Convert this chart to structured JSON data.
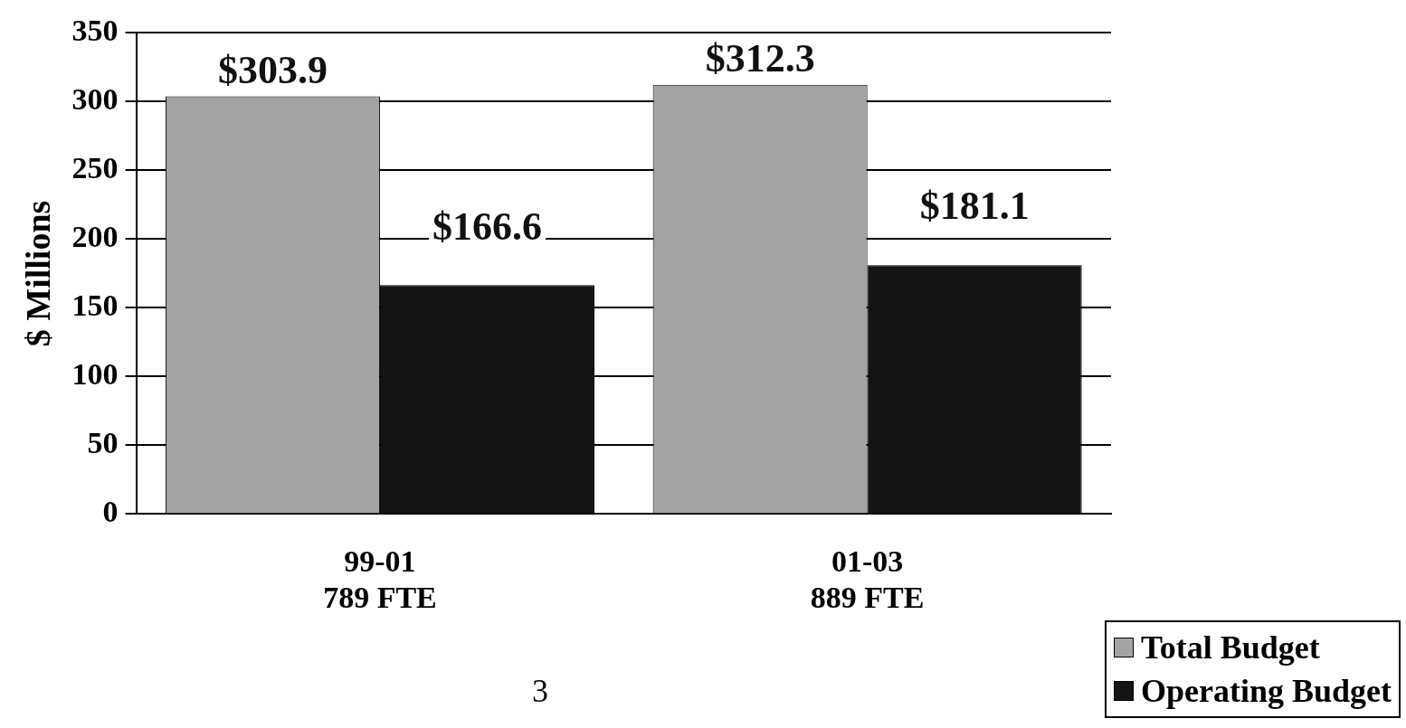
{
  "chart_data": {
    "type": "bar",
    "ylabel": "$ Millions",
    "categories": [
      "99-01\n789 FTE",
      "01-03\n889 FTE"
    ],
    "series": [
      {
        "name": "Total Budget",
        "color": "#a3a3a3",
        "values": [
          303.9,
          312.3
        ],
        "value_labels": [
          "$303.9",
          "$312.3"
        ]
      },
      {
        "name": "Operating Budget",
        "color": "#141414",
        "values": [
          166.6,
          181.1
        ],
        "value_labels": [
          "$166.6",
          "$181.1"
        ]
      }
    ],
    "ylim": [
      0,
      350
    ],
    "yticks": [
      0,
      50,
      100,
      150,
      200,
      250,
      300,
      350
    ],
    "grid": "y",
    "legend": "bottom right",
    "annotations": [
      "3"
    ]
  }
}
